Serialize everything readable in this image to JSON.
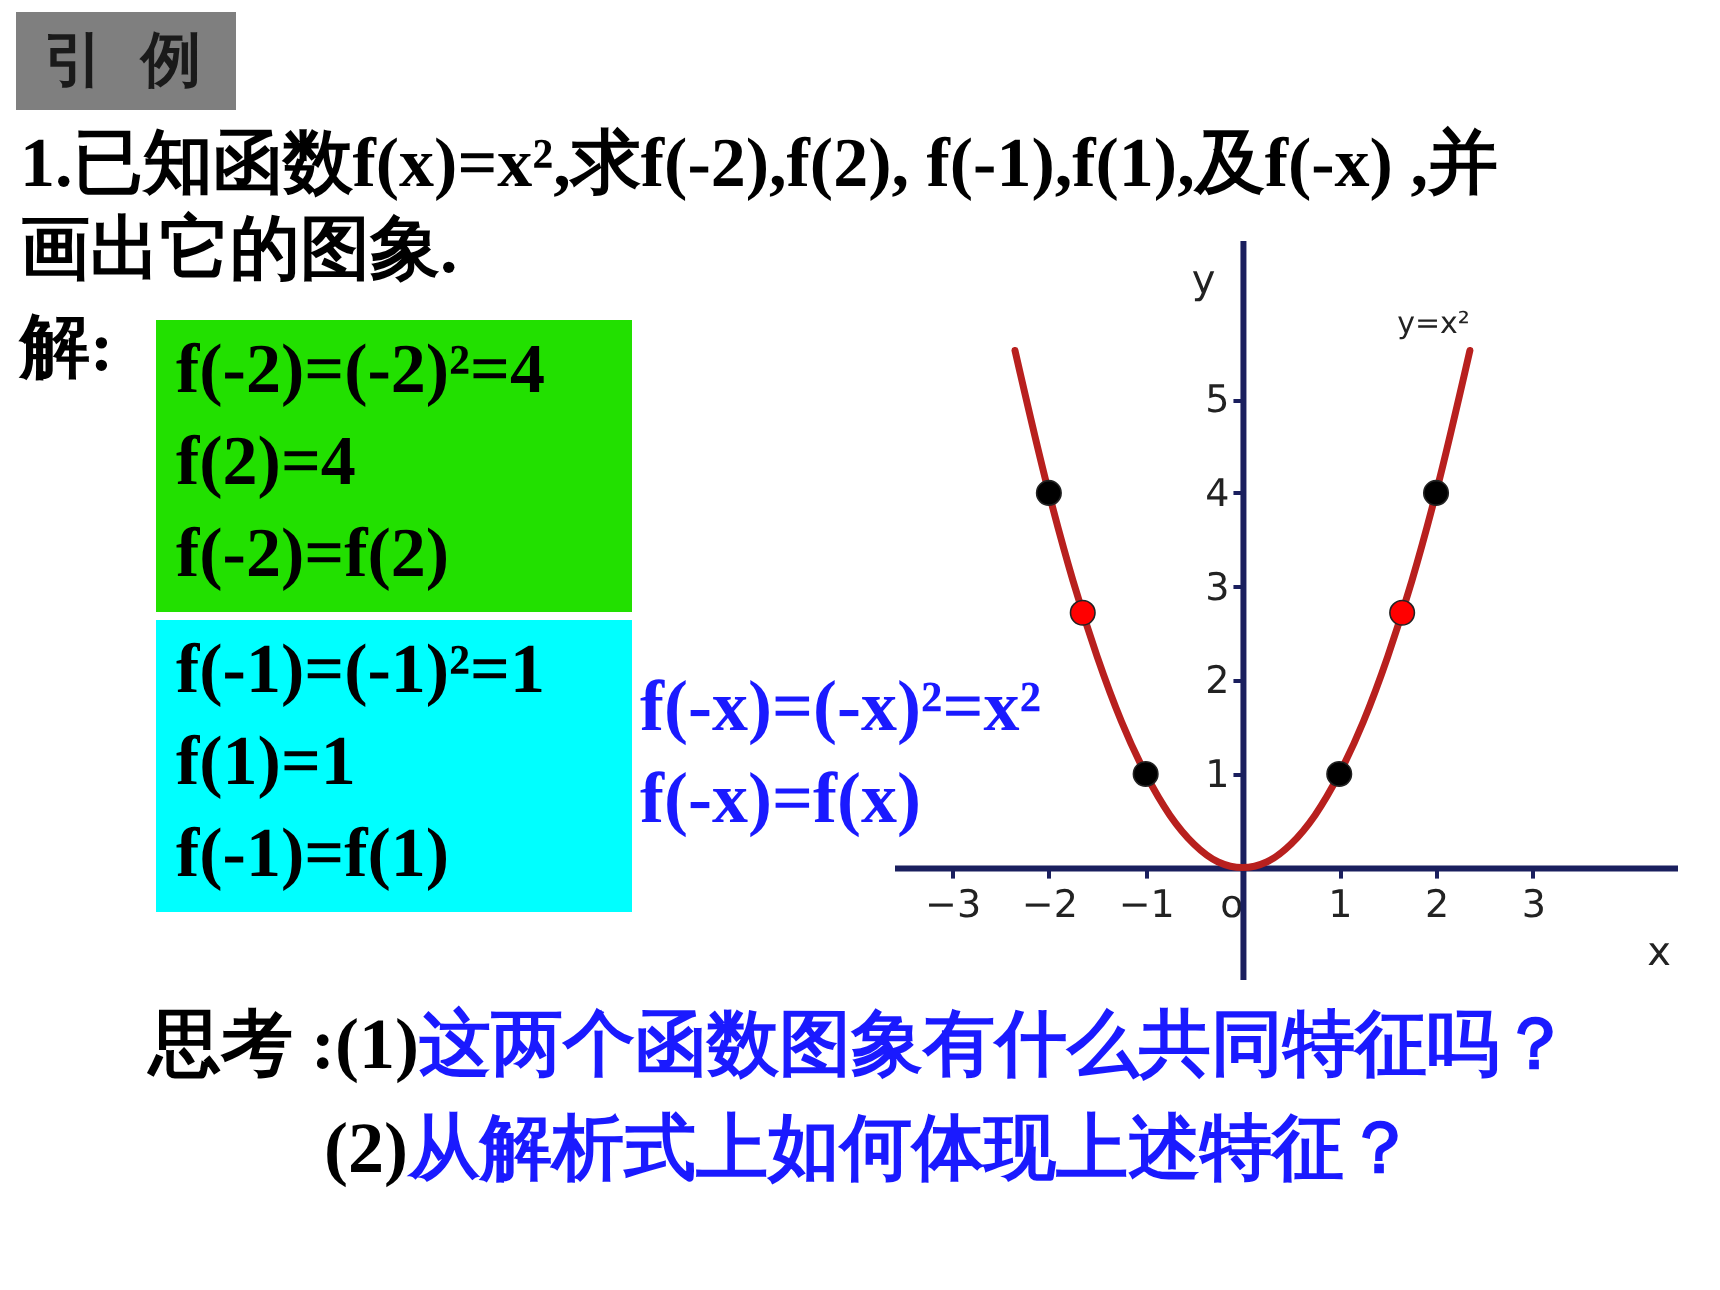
{
  "chart_data": {
    "type": "line",
    "title": "引 例",
    "subtitle": "1.已知函数f(x)=x²,求f(-2),f(2), f(-1),f(1),及f(-x) ,并画出它的图象.",
    "xlabel": "x",
    "ylabel": "y",
    "xlim": [
      -3.6,
      4.5
    ],
    "ylim": [
      -1.2,
      6.7
    ],
    "xticks": [
      -3,
      -2,
      -1,
      {
        "value": 0,
        "label": "o"
      },
      1,
      2,
      3
    ],
    "yticks": [
      1,
      2,
      3,
      4,
      5
    ],
    "grid": false,
    "series": [
      {
        "name": "y=x²",
        "type": "line",
        "color": "#b8201e",
        "x": [
          -2.35,
          -2,
          -1.75,
          -1.5,
          -1.25,
          -1,
          -0.75,
          -0.5,
          -0.25,
          0,
          0.25,
          0.5,
          0.75,
          1,
          1.25,
          1.5,
          1.75,
          2,
          2.35
        ],
        "values": [
          5.52,
          4,
          3.06,
          2.25,
          1.56,
          1,
          0.56,
          0.25,
          0.06,
          0,
          0.06,
          0.25,
          0.56,
          1,
          1.56,
          2.25,
          3.06,
          4,
          5.52
        ]
      },
      {
        "type": "scatter",
        "color": "#000000",
        "x": [
          -2,
          -1,
          1,
          2
        ],
        "values": [
          4,
          1,
          1,
          4
        ]
      },
      {
        "type": "scatter",
        "color": "#ff0000",
        "x": [
          -1.65,
          1.65
        ],
        "values": [
          2.72,
          2.72
        ]
      }
    ],
    "annotations": [
      "解:",
      "f(-2)=(-2)²=4",
      "f(2)=4",
      "f(-2)=f(2)",
      "f(-1)=(-1)²=1",
      "f(1)=1",
      "f(-1)=f(1)",
      "f(-x)=(-x)²=x²",
      "f(-x)=f(x)",
      "思考 :(1)",
      "这两个函数图象有什么共同特征吗？",
      "(2)",
      "从解析式上如何体现上述特征？"
    ]
  }
}
